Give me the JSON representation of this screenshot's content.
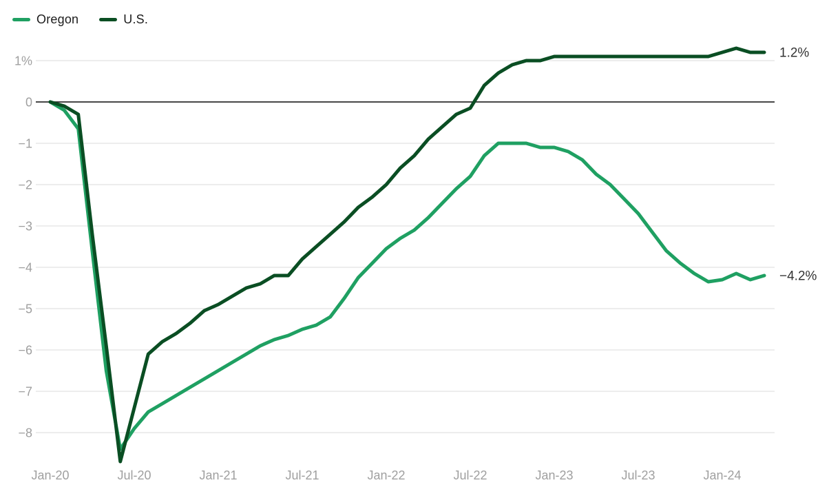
{
  "legend": {
    "items": [
      {
        "label": "Oregon",
        "color": "#1fa062"
      },
      {
        "label": "U.S.",
        "color": "#0a4e23"
      }
    ]
  },
  "colors": {
    "oregon_line": "#1fa062",
    "us_line": "#0a4e23",
    "gridline": "#e7e7e7",
    "zero_line": "#2d2d2d",
    "axis_text": "#9f9f9f",
    "end_label_text": "#333333"
  },
  "chart_data": {
    "type": "line",
    "title": "",
    "xlabel": "",
    "ylabel": "",
    "grid": "horizontal",
    "legend_position": "top-left",
    "zero_line": true,
    "ylim": [
      -8.9,
      1.45
    ],
    "y_ticks": [
      1,
      0,
      -1,
      -2,
      -3,
      -4,
      -5,
      -6,
      -7,
      -8
    ],
    "y_tick_labels": [
      "1%",
      "0",
      "−1",
      "−2",
      "−3",
      "−4",
      "−5",
      "−6",
      "−7",
      "−8"
    ],
    "x_tick_labels": [
      "Jan-20",
      "Jul-20",
      "Jan-21",
      "Jul-21",
      "Jan-22",
      "Jul-22",
      "Jan-23",
      "Jul-23",
      "Jan-24"
    ],
    "x_tick_month_index": [
      0,
      6,
      12,
      18,
      24,
      30,
      36,
      42,
      48
    ],
    "x": [
      "Jan-20",
      "Feb-20",
      "Mar-20",
      "Apr-20",
      "May-20",
      "Jun-20",
      "Jul-20",
      "Aug-20",
      "Sep-20",
      "Oct-20",
      "Nov-20",
      "Dec-20",
      "Jan-21",
      "Feb-21",
      "Mar-21",
      "Apr-21",
      "May-21",
      "Jun-21",
      "Jul-21",
      "Aug-21",
      "Sep-21",
      "Oct-21",
      "Nov-21",
      "Dec-21",
      "Jan-22",
      "Feb-22",
      "Mar-22",
      "Apr-22",
      "May-22",
      "Jun-22",
      "Jul-22",
      "Aug-22",
      "Sep-22",
      "Oct-22",
      "Nov-22",
      "Dec-22",
      "Jan-23",
      "Feb-23",
      "Mar-23",
      "Apr-23",
      "May-23",
      "Jun-23",
      "Jul-23",
      "Aug-23",
      "Sep-23",
      "Oct-23",
      "Nov-23",
      "Dec-23",
      "Jan-24",
      "Feb-24",
      "Mar-24",
      "Apr-24"
    ],
    "series": [
      {
        "name": "Oregon",
        "color": "#1fa062",
        "end_label": "−4.2%",
        "values": [
          0,
          -0.2,
          -0.65,
          -3.6,
          -6.5,
          -8.4,
          -7.9,
          -7.5,
          -7.3,
          -7.1,
          -6.9,
          -6.7,
          -6.5,
          -6.3,
          -6.1,
          -5.9,
          -5.75,
          -5.65,
          -5.5,
          -5.4,
          -5.2,
          -4.75,
          -4.25,
          -3.9,
          -3.55,
          -3.3,
          -3.1,
          -2.8,
          -2.45,
          -2.1,
          -1.8,
          -1.3,
          -1.0,
          -1.0,
          -1.0,
          -1.1,
          -1.1,
          -1.2,
          -1.4,
          -1.75,
          -2.0,
          -2.35,
          -2.7,
          -3.15,
          -3.6,
          -3.9,
          -4.15,
          -4.35,
          -4.3,
          -4.15,
          -4.3,
          -4.2
        ]
      },
      {
        "name": "U.S.",
        "color": "#0a4e23",
        "end_label": "1.2%",
        "values": [
          0,
          -0.1,
          -0.3,
          -3.2,
          -5.9,
          -8.7,
          -7.4,
          -6.1,
          -5.8,
          -5.6,
          -5.35,
          -5.05,
          -4.9,
          -4.7,
          -4.5,
          -4.4,
          -4.2,
          -4.2,
          -3.8,
          -3.5,
          -3.2,
          -2.9,
          -2.55,
          -2.3,
          -2.0,
          -1.6,
          -1.3,
          -0.9,
          -0.6,
          -0.3,
          -0.15,
          0.4,
          0.7,
          0.9,
          1.0,
          1.0,
          1.1,
          1.1,
          1.1,
          1.1,
          1.1,
          1.1,
          1.1,
          1.1,
          1.1,
          1.1,
          1.1,
          1.1,
          1.2,
          1.3,
          1.2,
          1.2
        ]
      }
    ]
  }
}
